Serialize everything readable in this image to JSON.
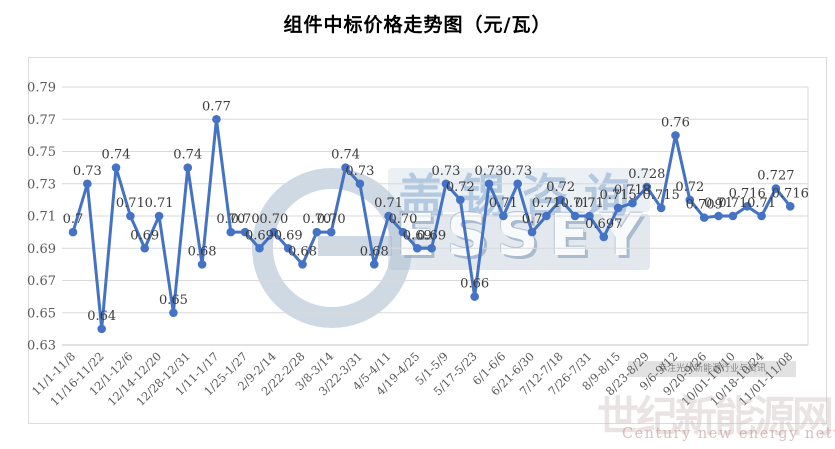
{
  "title": "组件中标价格走势图（元/瓦）",
  "watermarks": {
    "center_brand_cn": "盖锡咨询",
    "center_brand_en": "ESSEY",
    "center_logo_letter": "G",
    "corner_tagline": "专注光伏新能源行业与资讯",
    "corner_name_cn": "世纪新能源网",
    "corner_name_en": "Century new energy network"
  },
  "chart_data": {
    "type": "line",
    "title": "组件中标价格走势图（元/瓦）",
    "xlabel": "",
    "ylabel": "",
    "ylim": [
      0.63,
      0.79
    ],
    "ytick_step": 0.02,
    "yticks": [
      "0.79",
      "0.77",
      "0.75",
      "0.73",
      "0.71",
      "0.69",
      "0.67",
      "0.65",
      "0.63"
    ],
    "grid": true,
    "legend": "none",
    "line_color": "#4472C4",
    "marker": "circle",
    "tick_label_rotation": 45,
    "x_ticks_every_n_points": 2,
    "categories": [
      "11/1-11/8",
      "11/16-11/22",
      "12/1-12/6",
      "12/14-12/20",
      "12/28-12/31",
      "1/11-1/17",
      "1/25-1/27",
      "2/9-2/14",
      "2/22-2/28",
      "3/8-3/14",
      "3/22-3/31",
      "4/5-4/11",
      "4/19-4/25",
      "5/1-5/9",
      "5/17-5/23",
      "6/1-6/6",
      "6/21-6/30",
      "7/12-7/18",
      "7/26-7/31",
      "8/9-8/15",
      "8/23-8/29",
      "9/6-9/12",
      "9/20-9/26",
      "10/01-10/10",
      "10/18-10/24",
      "11/01-11/08"
    ],
    "values": [
      0.7,
      0.73,
      0.64,
      0.74,
      0.71,
      0.69,
      0.71,
      0.65,
      0.74,
      0.68,
      0.77,
      0.7,
      0.7,
      0.69,
      0.7,
      0.69,
      0.68,
      0.7,
      0.7,
      0.74,
      0.73,
      0.68,
      0.71,
      0.7,
      0.69,
      0.69,
      0.73,
      0.72,
      0.66,
      0.73,
      0.71,
      0.73,
      0.7,
      0.71,
      0.72,
      0.71,
      0.71,
      0.697,
      0.715,
      0.718,
      0.728,
      0.715,
      0.76,
      0.72,
      0.709,
      0.71,
      0.71,
      0.716,
      0.71,
      0.727,
      0.716
    ],
    "point_labels": [
      "0.7",
      "0.73",
      "0.64",
      "0.74",
      "0.71",
      "0.69",
      "0.71",
      "0.65",
      "0.74",
      "0.68",
      "0.77",
      "0.70",
      "0.70",
      "0.69",
      "0.70",
      "0.69",
      "0.68",
      "0.70",
      "0.70",
      "0.74",
      "0.73",
      "0.68",
      "0.71",
      "0.70",
      "0.69",
      "0.69",
      "0.73",
      "0.72",
      "0.66",
      "0.73",
      "0.71",
      "0.73",
      "0.7",
      "0.71",
      "0.72",
      "0.71",
      "0.71",
      "0.697",
      "0.715",
      "0.718",
      "0.728",
      "0.715",
      "0.76",
      "0.72",
      "0.709",
      "0.71",
      "0.71",
      "0.716",
      "0.71",
      "0.727",
      "0.716"
    ]
  }
}
